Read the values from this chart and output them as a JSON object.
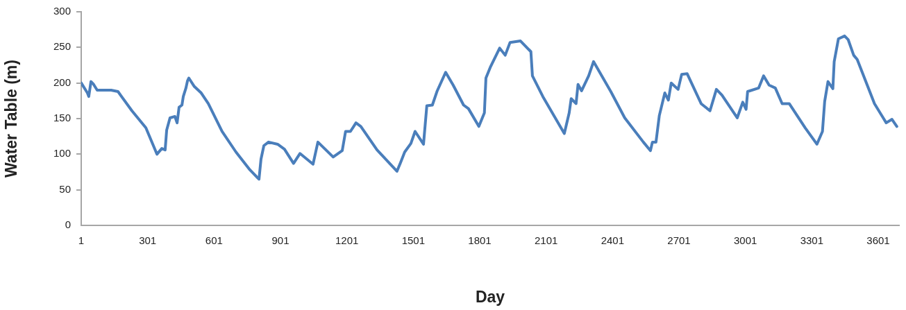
{
  "chart_data": {
    "type": "line",
    "xlabel": "Day",
    "ylabel": "Water Table (m)",
    "xlim": [
      1,
      3695
    ],
    "xticks": [
      1,
      301,
      601,
      901,
      1201,
      1501,
      1801,
      2101,
      2401,
      2701,
      3001,
      3301,
      3601
    ],
    "ylim": [
      0,
      300
    ],
    "yticks": [
      0,
      50,
      100,
      150,
      200,
      250,
      300
    ],
    "grid": false,
    "legend": false,
    "series": [
      {
        "color": "#4a7ebb",
        "x": [
          1,
          29,
          35,
          45,
          57,
          73,
          104,
          136,
          167,
          183,
          230,
          293,
          343,
          365,
          380,
          387,
          402,
          424,
          434,
          443,
          456,
          462,
          474,
          481,
          487,
          512,
          543,
          575,
          637,
          700,
          763,
          794,
          804,
          813,
          826,
          847,
          888,
          919,
          960,
          989,
          1048,
          1070,
          1139,
          1180,
          1195,
          1217,
          1242,
          1264,
          1337,
          1427,
          1443,
          1462,
          1490,
          1509,
          1547,
          1562,
          1587,
          1609,
          1647,
          1681,
          1728,
          1750,
          1797,
          1822,
          1829,
          1850,
          1891,
          1916,
          1938,
          1985,
          2032,
          2039,
          2086,
          2183,
          2205,
          2214,
          2236,
          2245,
          2261,
          2293,
          2315,
          2393,
          2456,
          2540,
          2572,
          2581,
          2597,
          2612,
          2637,
          2653,
          2666,
          2697,
          2713,
          2738,
          2801,
          2841,
          2870,
          2895,
          2964,
          2989,
          3004,
          3011,
          3061,
          3083,
          3108,
          3136,
          3167,
          3199,
          3271,
          3324,
          3349,
          3359,
          3374,
          3396,
          3402,
          3421,
          3449,
          3465,
          3490,
          3506,
          3584,
          3637,
          3663,
          3685
        ],
        "values": [
          200,
          186,
          181,
          202,
          198,
          190,
          190,
          190,
          188,
          181,
          161,
          137,
          100,
          108,
          106,
          134,
          151,
          153,
          144,
          166,
          169,
          181,
          193,
          203,
          207,
          195,
          186,
          171,
          132,
          103,
          78,
          68,
          65,
          93,
          112,
          117,
          114,
          107,
          87,
          101,
          86,
          117,
          96,
          105,
          132,
          132,
          144,
          139,
          106,
          76,
          88,
          103,
          115,
          132,
          114,
          168,
          169,
          189,
          215,
          197,
          169,
          164,
          139,
          158,
          207,
          223,
          249,
          239,
          257,
          259,
          244,
          210,
          181,
          129,
          158,
          178,
          171,
          198,
          189,
          210,
          230,
          188,
          151,
          117,
          105,
          117,
          117,
          154,
          186,
          176,
          200,
          191,
          212,
          213,
          171,
          161,
          191,
          183,
          151,
          173,
          163,
          188,
          193,
          210,
          197,
          193,
          171,
          171,
          137,
          114,
          132,
          174,
          202,
          192,
          230,
          262,
          266,
          261,
          239,
          233,
          171,
          144,
          149,
          139
        ]
      }
    ]
  }
}
